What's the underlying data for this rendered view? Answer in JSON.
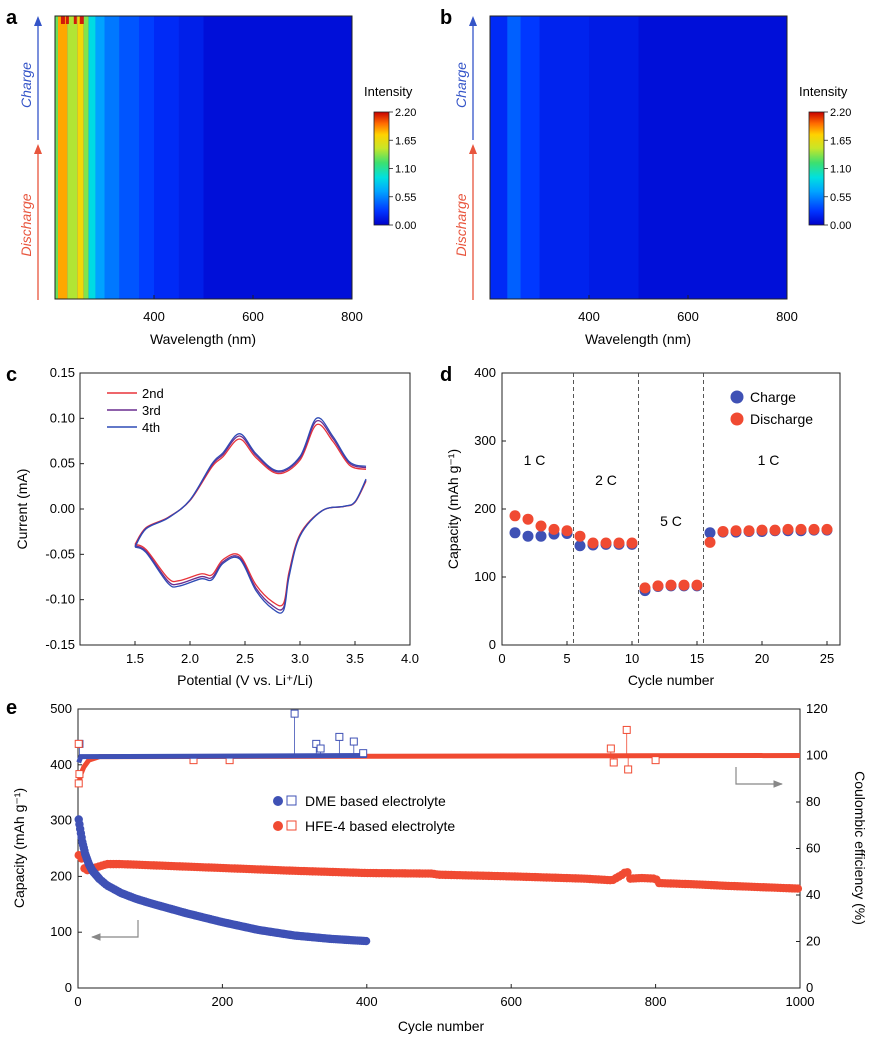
{
  "panels": {
    "a": "a",
    "b": "b",
    "c": "c",
    "d": "d",
    "e": "e"
  },
  "colors": {
    "blue_series": "#3f51b5",
    "red_series": "#f04a32",
    "charge_arrow": "#3454c8",
    "discharge_arrow": "#e8553d",
    "heat_bg": "#1232f0",
    "cv_2nd": "#e8333a",
    "cv_3rd": "#6a2d8f",
    "cv_4th": "#2f4bb5"
  },
  "chart_data": [
    {
      "id": "a",
      "type": "heatmap",
      "xlabel": "Wavelength (nm)",
      "xlim": [
        200,
        800
      ],
      "xticks": [
        "400",
        "600",
        "800"
      ],
      "side_labels": {
        "charge": "Charge",
        "discharge": "Discharge"
      },
      "colorbar": {
        "title": "Intensity",
        "ticks": [
          "2.20",
          "1.65",
          "1.10",
          "0.55",
          "0.00"
        ],
        "min": 0,
        "max": 2.2
      },
      "bands": [
        {
          "from": 200,
          "to": 206,
          "value": 1.3
        },
        {
          "from": 206,
          "to": 225,
          "value": 1.85
        },
        {
          "from": 225,
          "to": 245,
          "value": 1.45
        },
        {
          "from": 245,
          "to": 258,
          "value": 1.7
        },
        {
          "from": 258,
          "to": 268,
          "value": 1.35
        },
        {
          "from": 268,
          "to": 282,
          "value": 0.9
        },
        {
          "from": 282,
          "to": 300,
          "value": 0.65
        },
        {
          "from": 300,
          "to": 330,
          "value": 0.5
        },
        {
          "from": 330,
          "to": 370,
          "value": 0.38
        },
        {
          "from": 370,
          "to": 400,
          "value": 0.3
        },
        {
          "from": 400,
          "to": 450,
          "value": 0.22
        },
        {
          "from": 450,
          "to": 500,
          "value": 0.16
        },
        {
          "from": 500,
          "to": 800,
          "value": 0.08
        }
      ]
    },
    {
      "id": "b",
      "type": "heatmap",
      "xlabel": "Wavelength (nm)",
      "xlim": [
        200,
        800
      ],
      "xticks": [
        "400",
        "600",
        "800"
      ],
      "side_labels": {
        "charge": "Charge",
        "discharge": "Discharge"
      },
      "colorbar": {
        "title": "Intensity",
        "ticks": [
          "2.20",
          "1.65",
          "1.10",
          "0.55",
          "0.00"
        ],
        "min": 0,
        "max": 2.2
      },
      "bands": [
        {
          "from": 200,
          "to": 235,
          "value": 0.22
        },
        {
          "from": 235,
          "to": 262,
          "value": 0.42
        },
        {
          "from": 262,
          "to": 300,
          "value": 0.28
        },
        {
          "from": 300,
          "to": 400,
          "value": 0.18
        },
        {
          "from": 400,
          "to": 500,
          "value": 0.14
        },
        {
          "from": 500,
          "to": 800,
          "value": 0.08
        }
      ]
    },
    {
      "id": "c",
      "type": "line",
      "title": "",
      "xlabel": "Potential (V vs. Li⁺/Li)",
      "ylabel": "Current (mA)",
      "xlim": [
        1.0,
        4.0
      ],
      "ylim": [
        -0.15,
        0.15
      ],
      "xticks": [
        "1.5",
        "2.0",
        "2.5",
        "3.0",
        "3.5",
        "4.0"
      ],
      "yticks": [
        "-0.15",
        "-0.10",
        "-0.05",
        "0.00",
        "0.05",
        "0.10",
        "0.15"
      ],
      "legend": [
        "2nd",
        "3rd",
        "4th"
      ],
      "series": [
        {
          "name": "2nd",
          "scale": 0.93,
          "upper": [
            [
              1.5,
              -0.042
            ],
            [
              1.6,
              -0.022
            ],
            [
              1.8,
              -0.01
            ],
            [
              2.0,
              0.01
            ],
            [
              2.2,
              0.05
            ],
            [
              2.3,
              0.062
            ],
            [
              2.45,
              0.083
            ],
            [
              2.6,
              0.061
            ],
            [
              2.8,
              0.042
            ],
            [
              3.0,
              0.058
            ],
            [
              3.15,
              0.1
            ],
            [
              3.3,
              0.08
            ],
            [
              3.45,
              0.052
            ],
            [
              3.6,
              0.047
            ]
          ],
          "lower": [
            [
              3.6,
              0.033
            ],
            [
              3.5,
              0.008
            ],
            [
              3.4,
              0.003
            ],
            [
              3.2,
              -0.002
            ],
            [
              3.0,
              -0.03
            ],
            [
              2.9,
              -0.075
            ],
            [
              2.85,
              -0.112
            ],
            [
              2.75,
              -0.11
            ],
            [
              2.6,
              -0.09
            ],
            [
              2.45,
              -0.055
            ],
            [
              2.3,
              -0.06
            ],
            [
              2.2,
              -0.078
            ],
            [
              2.1,
              -0.077
            ],
            [
              1.9,
              -0.085
            ],
            [
              1.8,
              -0.082
            ],
            [
              1.6,
              -0.048
            ],
            [
              1.5,
              -0.042
            ]
          ]
        },
        {
          "name": "3rd",
          "scale": 0.97,
          "upper": [
            [
              1.5,
              -0.042
            ],
            [
              1.6,
              -0.022
            ],
            [
              1.8,
              -0.01
            ],
            [
              2.0,
              0.01
            ],
            [
              2.2,
              0.05
            ],
            [
              2.3,
              0.062
            ],
            [
              2.45,
              0.083
            ],
            [
              2.6,
              0.061
            ],
            [
              2.8,
              0.042
            ],
            [
              3.0,
              0.058
            ],
            [
              3.15,
              0.1
            ],
            [
              3.3,
              0.08
            ],
            [
              3.45,
              0.052
            ],
            [
              3.6,
              0.047
            ]
          ],
          "lower": [
            [
              3.6,
              0.033
            ],
            [
              3.5,
              0.008
            ],
            [
              3.4,
              0.003
            ],
            [
              3.2,
              -0.002
            ],
            [
              3.0,
              -0.03
            ],
            [
              2.9,
              -0.075
            ],
            [
              2.85,
              -0.112
            ],
            [
              2.75,
              -0.11
            ],
            [
              2.6,
              -0.09
            ],
            [
              2.45,
              -0.055
            ],
            [
              2.3,
              -0.06
            ],
            [
              2.2,
              -0.078
            ],
            [
              2.1,
              -0.077
            ],
            [
              1.9,
              -0.085
            ],
            [
              1.8,
              -0.082
            ],
            [
              1.6,
              -0.048
            ],
            [
              1.5,
              -0.042
            ]
          ]
        },
        {
          "name": "4th",
          "scale": 1.0,
          "upper": [
            [
              1.5,
              -0.042
            ],
            [
              1.6,
              -0.022
            ],
            [
              1.8,
              -0.01
            ],
            [
              2.0,
              0.01
            ],
            [
              2.2,
              0.05
            ],
            [
              2.3,
              0.062
            ],
            [
              2.45,
              0.083
            ],
            [
              2.6,
              0.061
            ],
            [
              2.8,
              0.042
            ],
            [
              3.0,
              0.058
            ],
            [
              3.15,
              0.1
            ],
            [
              3.3,
              0.08
            ],
            [
              3.45,
              0.052
            ],
            [
              3.6,
              0.047
            ]
          ],
          "lower": [
            [
              3.6,
              0.033
            ],
            [
              3.5,
              0.008
            ],
            [
              3.4,
              0.003
            ],
            [
              3.2,
              -0.002
            ],
            [
              3.0,
              -0.03
            ],
            [
              2.9,
              -0.075
            ],
            [
              2.85,
              -0.112
            ],
            [
              2.75,
              -0.11
            ],
            [
              2.6,
              -0.09
            ],
            [
              2.45,
              -0.055
            ],
            [
              2.3,
              -0.06
            ],
            [
              2.2,
              -0.078
            ],
            [
              2.1,
              -0.077
            ],
            [
              1.9,
              -0.085
            ],
            [
              1.8,
              -0.082
            ],
            [
              1.6,
              -0.048
            ],
            [
              1.5,
              -0.042
            ]
          ]
        }
      ]
    },
    {
      "id": "d",
      "type": "scatter",
      "xlabel": "Cycle number",
      "ylabel": "Capacity (mAh g⁻¹)",
      "xlim": [
        0,
        26
      ],
      "ylim": [
        0,
        400
      ],
      "xticks": [
        "0",
        "5",
        "10",
        "15",
        "20",
        "25"
      ],
      "yticks": [
        "0",
        "100",
        "200",
        "300",
        "400"
      ],
      "legend": [
        "Charge",
        "Discharge"
      ],
      "rate_labels": [
        {
          "x": 2.5,
          "y": 265,
          "text": "1 C"
        },
        {
          "x": 8,
          "y": 235,
          "text": "2 C"
        },
        {
          "x": 13,
          "y": 175,
          "text": "5 C"
        },
        {
          "x": 20.5,
          "y": 265,
          "text": "1 C"
        }
      ],
      "dividers": [
        5.5,
        10.5,
        15.5
      ],
      "series": [
        {
          "name": "Charge",
          "x": [
            1,
            2,
            3,
            4,
            5,
            6,
            7,
            8,
            9,
            10,
            11,
            12,
            13,
            14,
            15,
            16,
            17,
            18,
            19,
            20,
            21,
            22,
            23,
            24,
            25
          ],
          "values": [
            165,
            160,
            160,
            163,
            164,
            146,
            147,
            148,
            148,
            148,
            80,
            86,
            87,
            87,
            87,
            165,
            166,
            166,
            167,
            167,
            168,
            168,
            168,
            169,
            169
          ]
        },
        {
          "name": "Discharge",
          "x": [
            1,
            2,
            3,
            4,
            5,
            6,
            7,
            8,
            9,
            10,
            11,
            12,
            13,
            14,
            15,
            16,
            17,
            18,
            19,
            20,
            21,
            22,
            23,
            24,
            25
          ],
          "values": [
            190,
            185,
            175,
            170,
            168,
            160,
            150,
            150,
            150,
            150,
            84,
            87,
            88,
            88,
            88,
            151,
            167,
            168,
            168,
            169,
            169,
            170,
            170,
            170,
            170
          ]
        }
      ]
    },
    {
      "id": "e",
      "type": "scatter",
      "xlabel": "Cycle number",
      "ylabel": "Capacity (mAh g⁻¹)",
      "y2label": "Coulombic efficiency (%)",
      "xlim": [
        0,
        1000
      ],
      "ylim": [
        0,
        500
      ],
      "y2lim": [
        0,
        120
      ],
      "xticks": [
        "0",
        "200",
        "400",
        "600",
        "800",
        "1000"
      ],
      "yticks": [
        "0",
        "100",
        "200",
        "300",
        "400",
        "500"
      ],
      "y2ticks": [
        "0",
        "20",
        "40",
        "60",
        "80",
        "100",
        "120"
      ],
      "legend": [
        "DME based electrolyte",
        "HFE-4 based electrolyte"
      ],
      "series": [
        {
          "name": "DME based electrolyte",
          "capacity": [
            [
              1,
              302
            ],
            [
              3,
              285
            ],
            [
              6,
              262
            ],
            [
              10,
              240
            ],
            [
              15,
              222
            ],
            [
              20,
              210
            ],
            [
              30,
              195
            ],
            [
              40,
              184
            ],
            [
              60,
              170
            ],
            [
              80,
              160
            ],
            [
              100,
              152
            ],
            [
              150,
              134
            ],
            [
              200,
              118
            ],
            [
              250,
              104
            ],
            [
              300,
              94
            ],
            [
              350,
              88
            ],
            [
              400,
              84
            ]
          ],
          "ce_base": 100,
          "ce_spikes": [
            [
              2,
              105
            ],
            [
              300,
              118
            ],
            [
              330,
              105
            ],
            [
              336,
              103
            ],
            [
              362,
              108
            ],
            [
              382,
              106
            ],
            [
              395,
              101
            ]
          ]
        },
        {
          "name": "HFE-4 based electrolyte",
          "capacity": [
            [
              1,
              238
            ],
            [
              5,
              232
            ],
            [
              10,
              210
            ],
            [
              20,
              214
            ],
            [
              40,
              222
            ],
            [
              60,
              222
            ],
            [
              100,
              220
            ],
            [
              200,
              215
            ],
            [
              300,
              210
            ],
            [
              400,
              206
            ],
            [
              490,
              205
            ],
            [
              500,
              203
            ],
            [
              600,
              200
            ],
            [
              700,
              196
            ],
            [
              740,
              193
            ],
            [
              755,
              204
            ],
            [
              760,
              210
            ],
            [
              765,
              196
            ],
            [
              780,
              197
            ],
            [
              800,
              196
            ],
            [
              805,
              188
            ],
            [
              850,
              186
            ],
            [
              900,
              183
            ],
            [
              1000,
              178
            ]
          ],
          "ce_early": [
            [
              1,
              88
            ],
            [
              4,
              92
            ],
            [
              8,
              95
            ],
            [
              15,
              98
            ],
            [
              30,
              99.5
            ]
          ],
          "ce_base": 100,
          "ce_spikes": [
            [
              160,
              98
            ],
            [
              210,
              98
            ],
            [
              738,
              103
            ],
            [
              742,
              97
            ],
            [
              760,
              111
            ],
            [
              762,
              94
            ],
            [
              800,
              98
            ]
          ]
        }
      ]
    }
  ]
}
